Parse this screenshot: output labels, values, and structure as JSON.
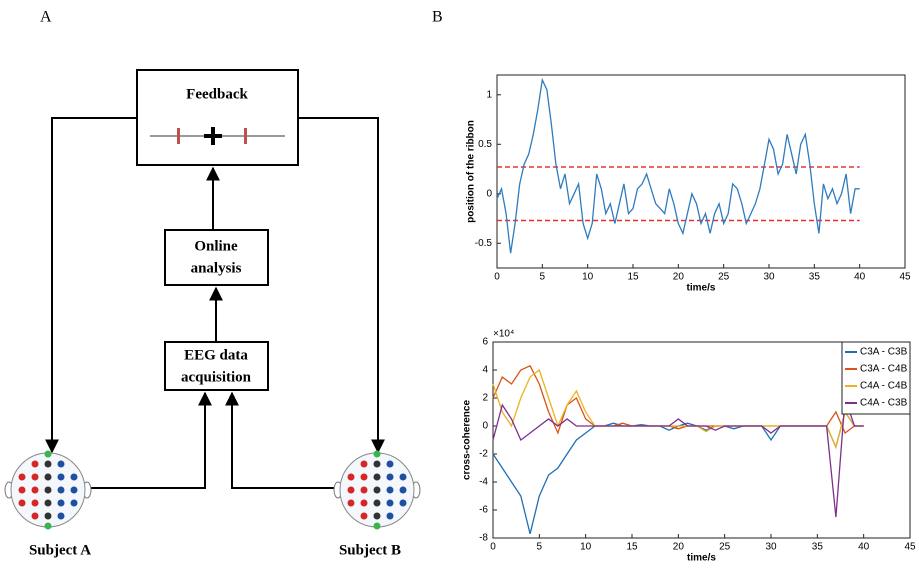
{
  "panel_labels": [
    "A",
    "B"
  ],
  "diagram": {
    "feedback": {
      "lines": [
        "Feedback"
      ]
    },
    "online": {
      "lines": [
        "Online",
        "analysis"
      ]
    },
    "eeg": {
      "lines": [
        "EEG data",
        "acquisition"
      ]
    },
    "subjects": [
      "Subject A",
      "Subject B"
    ]
  },
  "chart_data": [
    {
      "type": "line",
      "xlabel": "time/s",
      "ylabel": "position of the ribbon",
      "xlim": [
        0,
        45
      ],
      "xticks": [
        0,
        5,
        10,
        15,
        20,
        25,
        30,
        35,
        40,
        45
      ],
      "ylim": [
        -0.75,
        1.2
      ],
      "yticks": [
        -0.5,
        0,
        0.5,
        1
      ],
      "hlines": [
        0.27,
        -0.27
      ],
      "hline_color": "#e8312a",
      "color": "#2f7bbf",
      "x": [
        0,
        0.5,
        1,
        1.5,
        2,
        2.5,
        3,
        3.5,
        4,
        4.5,
        5,
        5.5,
        6,
        6.5,
        7,
        7.5,
        8,
        8.5,
        9,
        9.5,
        10,
        10.5,
        11,
        11.5,
        12,
        12.5,
        13,
        13.5,
        14,
        14.5,
        15,
        15.5,
        16,
        16.5,
        17,
        17.5,
        18,
        18.5,
        19,
        19.5,
        20,
        20.5,
        21,
        21.5,
        22,
        22.5,
        23,
        23.5,
        24,
        24.5,
        25,
        25.5,
        26,
        26.5,
        27,
        27.5,
        28,
        28.5,
        29,
        29.5,
        30,
        30.5,
        31,
        31.5,
        32,
        32.5,
        33,
        33.5,
        34,
        34.5,
        35,
        35.5,
        36,
        36.5,
        37,
        37.5,
        38,
        38.5,
        39,
        39.5,
        40
      ],
      "values": [
        -0.05,
        0.05,
        -0.2,
        -0.6,
        -0.3,
        0.1,
        0.3,
        0.4,
        0.6,
        0.85,
        1.15,
        1.05,
        0.7,
        0.3,
        0.05,
        0.2,
        -0.1,
        0,
        0.1,
        -0.3,
        -0.45,
        -0.3,
        0.2,
        0.05,
        -0.2,
        -0.1,
        -0.3,
        -0.1,
        0.1,
        -0.2,
        -0.15,
        0.05,
        0.1,
        0.2,
        0.05,
        -0.1,
        -0.15,
        -0.2,
        0.05,
        -0.1,
        -0.3,
        -0.4,
        -0.2,
        0,
        -0.1,
        -0.3,
        -0.2,
        -0.4,
        -0.2,
        -0.1,
        -0.3,
        -0.2,
        0.1,
        0.05,
        -0.1,
        -0.3,
        -0.2,
        -0.1,
        0.05,
        0.3,
        0.55,
        0.45,
        0.2,
        0.3,
        0.6,
        0.4,
        0.2,
        0.5,
        0.6,
        0.3,
        -0.1,
        -0.4,
        0.1,
        -0.05,
        0.05,
        -0.1,
        0,
        0.2,
        -0.2,
        0.05,
        0.05
      ]
    },
    {
      "type": "line",
      "xlabel": "time/s",
      "ylabel": "cross-coherence",
      "y_scale_label": "×10⁴",
      "xlim": [
        0,
        45
      ],
      "xticks": [
        0,
        5,
        10,
        15,
        20,
        25,
        30,
        35,
        40,
        45
      ],
      "ylim": [
        -8,
        6
      ],
      "yticks": [
        -8,
        -6,
        -4,
        -2,
        0,
        2,
        4,
        6
      ],
      "legend": "upper right",
      "x": [
        0,
        1,
        2,
        3,
        4,
        5,
        6,
        7,
        8,
        9,
        10,
        11,
        12,
        13,
        14,
        15,
        16,
        17,
        18,
        19,
        20,
        21,
        22,
        23,
        24,
        25,
        26,
        27,
        28,
        29,
        30,
        31,
        32,
        33,
        34,
        35,
        36,
        37,
        38,
        39,
        40
      ],
      "series": [
        {
          "name": "C3A - C3B",
          "color": "#1f6fb5",
          "values": [
            -2,
            -3,
            -4,
            -5,
            -7.7,
            -5,
            -3.5,
            -3,
            -2,
            -1,
            -0.5,
            0,
            0,
            0.2,
            0,
            0,
            0.1,
            0,
            0,
            -0.3,
            0,
            0.2,
            0,
            -0.3,
            0,
            0,
            -0.2,
            0,
            0,
            0,
            -1,
            0,
            0,
            0,
            0,
            0,
            0,
            -1.5,
            1,
            0,
            0
          ]
        },
        {
          "name": "C3A - C4B",
          "color": "#d95319",
          "values": [
            2,
            3.5,
            3,
            4,
            4.3,
            3,
            1,
            -0.5,
            1.5,
            2,
            0.5,
            0,
            0,
            0,
            0.2,
            0,
            0,
            0,
            0,
            0,
            -0.2,
            0,
            0,
            0,
            0,
            0,
            0,
            0,
            0,
            0,
            0,
            0,
            0,
            0,
            0,
            0,
            0,
            1,
            -0.5,
            0,
            0
          ]
        },
        {
          "name": "C4A - C4B",
          "color": "#edb120",
          "values": [
            3,
            1,
            0,
            2,
            3.5,
            4,
            2,
            0,
            1.5,
            2.5,
            1,
            0,
            0,
            0,
            0,
            0,
            0,
            0,
            0,
            0,
            0,
            0,
            0,
            -0.4,
            0,
            0,
            0,
            0,
            0,
            0,
            0,
            0,
            0,
            0,
            0,
            0,
            0,
            -1.5,
            1,
            0,
            0
          ]
        },
        {
          "name": "C4A - C3B",
          "color": "#7e2f8e",
          "values": [
            -1,
            1.5,
            0.5,
            -1,
            -0.5,
            0,
            0.5,
            0,
            0.5,
            0,
            0,
            0,
            0,
            0,
            0,
            0,
            0,
            0,
            0,
            0,
            0.5,
            0,
            0,
            0,
            -0.3,
            0,
            0,
            0,
            0,
            0,
            -0.5,
            0,
            0,
            0,
            0,
            0,
            0,
            -6.5,
            2,
            0,
            0
          ]
        }
      ]
    }
  ]
}
